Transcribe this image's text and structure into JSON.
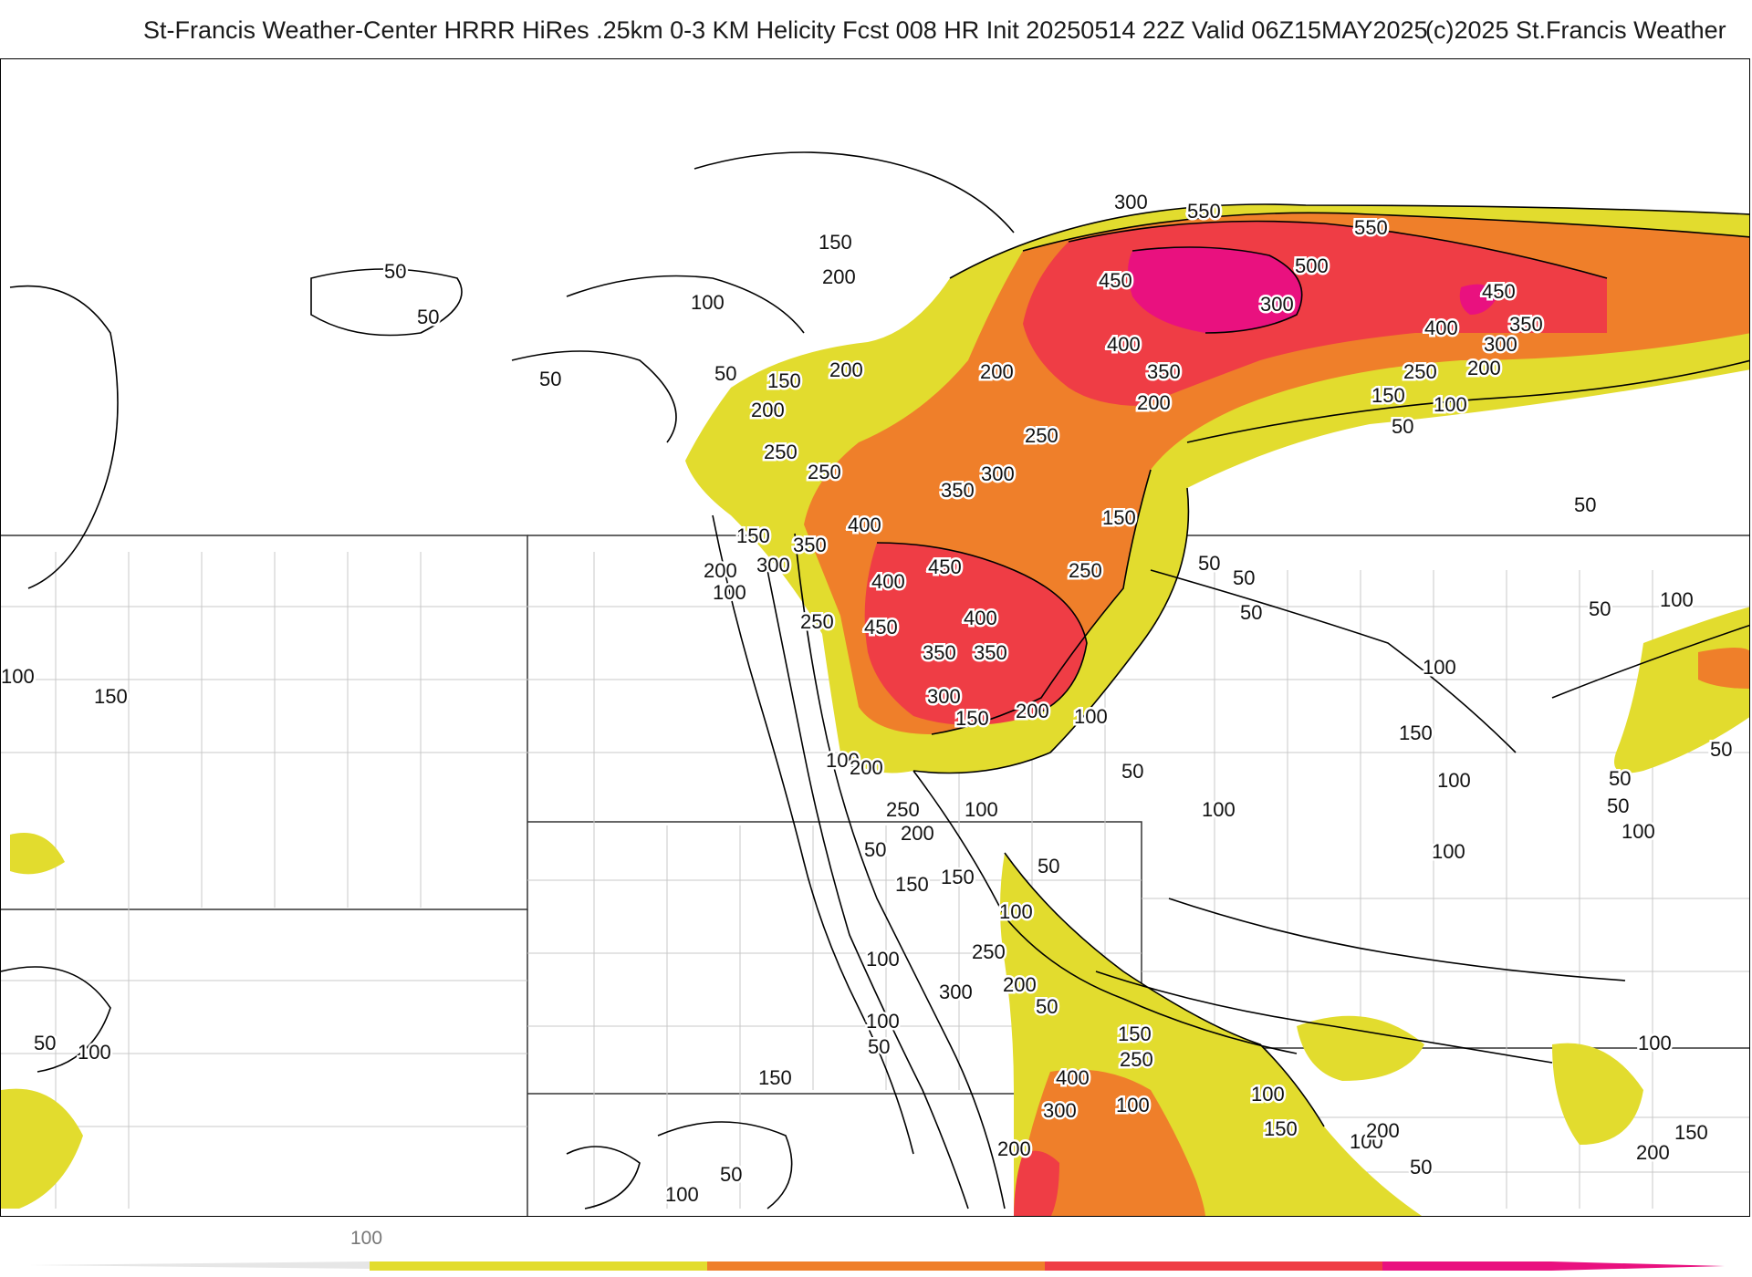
{
  "header": {
    "title_left": "St-Francis Weather-Center HRRR HiRes .25km 0-3 KM Helicity Fcst 008 HR Init 20250514 22Z  Valid 06Z15MAY2025",
    "title_right": "(c)2025 St.Francis Weather"
  },
  "colors": {
    "band_100_200": "#e2dc2e",
    "band_200_300": "#ef7f2a",
    "band_300_400": "#ef3d45",
    "band_400_500": "#e9117f",
    "band_500_plus": "#f0a8d8",
    "contour": "#000000",
    "boundary": "#bdbdbd"
  },
  "legend": {
    "tick_label": "100"
  },
  "contour_labels": [
    {
      "id": "l1",
      "text": "300"
    },
    {
      "id": "l2",
      "text": "550"
    },
    {
      "id": "l3",
      "text": "550"
    },
    {
      "id": "l4",
      "text": "450"
    },
    {
      "id": "l5",
      "text": "500"
    },
    {
      "id": "l6",
      "text": "450"
    },
    {
      "id": "l7",
      "text": "300"
    },
    {
      "id": "l8",
      "text": "400"
    },
    {
      "id": "l9",
      "text": "350"
    },
    {
      "id": "l10",
      "text": "400"
    },
    {
      "id": "l11",
      "text": "350"
    },
    {
      "id": "l12",
      "text": "300"
    },
    {
      "id": "l13",
      "text": "250"
    },
    {
      "id": "l14",
      "text": "200"
    },
    {
      "id": "l15",
      "text": "150"
    },
    {
      "id": "l16",
      "text": "100"
    },
    {
      "id": "l17",
      "text": "50"
    },
    {
      "id": "l18",
      "text": "200"
    },
    {
      "id": "l19",
      "text": "150"
    },
    {
      "id": "l20",
      "text": "200"
    },
    {
      "id": "l21",
      "text": "100"
    },
    {
      "id": "l22",
      "text": "50"
    },
    {
      "id": "l23",
      "text": "50"
    },
    {
      "id": "l24",
      "text": "50"
    },
    {
      "id": "l25",
      "text": "200"
    },
    {
      "id": "l26",
      "text": "200"
    },
    {
      "id": "l27",
      "text": "150"
    },
    {
      "id": "l28",
      "text": "250"
    },
    {
      "id": "l29",
      "text": "50"
    },
    {
      "id": "l30",
      "text": "200"
    },
    {
      "id": "l31",
      "text": "250"
    },
    {
      "id": "l32",
      "text": "300"
    },
    {
      "id": "l33",
      "text": "250"
    },
    {
      "id": "l34",
      "text": "350"
    },
    {
      "id": "l35",
      "text": "150"
    },
    {
      "id": "l36",
      "text": "400"
    },
    {
      "id": "l37",
      "text": "150"
    },
    {
      "id": "l38",
      "text": "350"
    },
    {
      "id": "l39",
      "text": "300"
    },
    {
      "id": "l40",
      "text": "200"
    },
    {
      "id": "l41",
      "text": "450"
    },
    {
      "id": "l42",
      "text": "400"
    },
    {
      "id": "l43",
      "text": "100"
    },
    {
      "id": "l44",
      "text": "250"
    },
    {
      "id": "l45",
      "text": "50"
    },
    {
      "id": "l46",
      "text": "400"
    },
    {
      "id": "l47",
      "text": "450"
    },
    {
      "id": "l48",
      "text": "250"
    },
    {
      "id": "l49",
      "text": "350"
    },
    {
      "id": "l50",
      "text": "350"
    },
    {
      "id": "l51",
      "text": "300"
    },
    {
      "id": "l52",
      "text": "150"
    },
    {
      "id": "l53",
      "text": "200"
    },
    {
      "id": "l54",
      "text": "100"
    },
    {
      "id": "l55",
      "text": "50"
    },
    {
      "id": "l56",
      "text": "50"
    },
    {
      "id": "l57",
      "text": "50"
    },
    {
      "id": "l58",
      "text": "50"
    },
    {
      "id": "l59",
      "text": "100"
    },
    {
      "id": "l60",
      "text": "50"
    },
    {
      "id": "l61",
      "text": "100"
    },
    {
      "id": "l62",
      "text": "50"
    },
    {
      "id": "l63",
      "text": "100"
    },
    {
      "id": "l64",
      "text": "150"
    },
    {
      "id": "l65",
      "text": "100"
    },
    {
      "id": "l66",
      "text": "50"
    },
    {
      "id": "l67",
      "text": "50"
    },
    {
      "id": "l68",
      "text": "100"
    },
    {
      "id": "l69",
      "text": "100"
    },
    {
      "id": "l70",
      "text": "100"
    },
    {
      "id": "l71",
      "text": "200"
    },
    {
      "id": "l72",
      "text": "250"
    },
    {
      "id": "l73",
      "text": "200"
    },
    {
      "id": "l74",
      "text": "50"
    },
    {
      "id": "l75",
      "text": "150"
    },
    {
      "id": "l76",
      "text": "100"
    },
    {
      "id": "l77",
      "text": "50"
    },
    {
      "id": "l78",
      "text": "150"
    },
    {
      "id": "l79",
      "text": "100"
    },
    {
      "id": "l80",
      "text": "250"
    },
    {
      "id": "l81",
      "text": "200"
    },
    {
      "id": "l82",
      "text": "300"
    },
    {
      "id": "l83",
      "text": "50"
    },
    {
      "id": "l84",
      "text": "100"
    },
    {
      "id": "l85",
      "text": "50"
    },
    {
      "id": "l86",
      "text": "100"
    },
    {
      "id": "l87",
      "text": "150"
    },
    {
      "id": "l88",
      "text": "250"
    },
    {
      "id": "l89",
      "text": "150"
    },
    {
      "id": "l90",
      "text": "400"
    },
    {
      "id": "l91",
      "text": "300"
    },
    {
      "id": "l92",
      "text": "100"
    },
    {
      "id": "l93",
      "text": "200"
    },
    {
      "id": "l94",
      "text": "150"
    },
    {
      "id": "l95",
      "text": "100"
    },
    {
      "id": "l96",
      "text": "50"
    },
    {
      "id": "l97",
      "text": "100"
    },
    {
      "id": "l98",
      "text": "50"
    },
    {
      "id": "l99",
      "text": "100"
    },
    {
      "id": "l100",
      "text": "50"
    },
    {
      "id": "l101",
      "text": "100"
    },
    {
      "id": "l102",
      "text": "150"
    },
    {
      "id": "l103",
      "text": "200"
    },
    {
      "id": "l104",
      "text": "100"
    },
    {
      "id": "l105",
      "text": "200"
    },
    {
      "id": "l106",
      "text": "150"
    },
    {
      "id": "l107",
      "text": "100"
    }
  ]
}
